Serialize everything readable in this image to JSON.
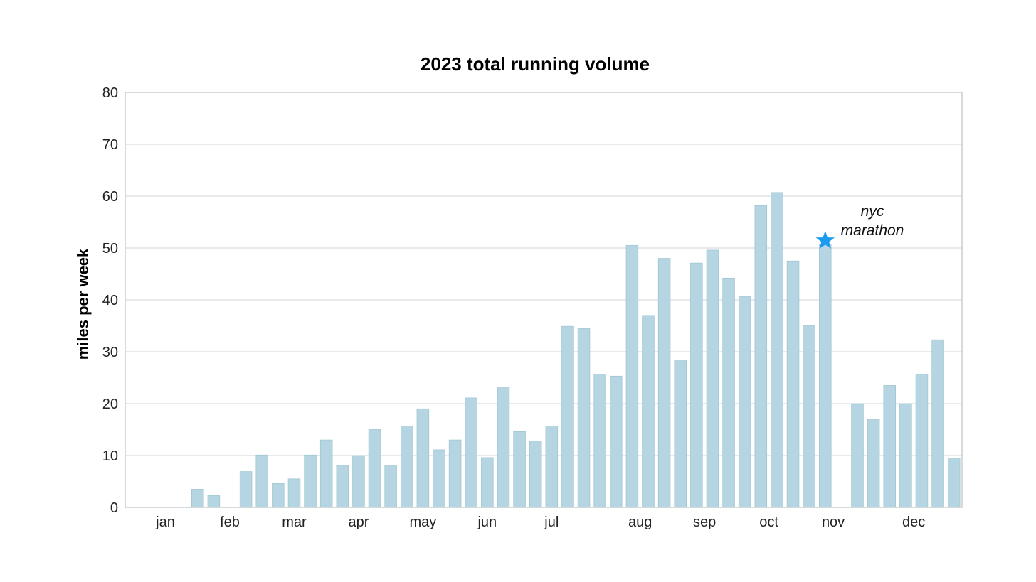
{
  "chart_data": {
    "type": "bar",
    "title": "2023 total running volume",
    "xlabel": "",
    "ylabel": "miles per week",
    "ylim": [
      0,
      80
    ],
    "yticks": [
      0,
      10,
      20,
      30,
      40,
      50,
      60,
      70,
      80
    ],
    "grid": true,
    "bar_color": "#b5d5e2",
    "x": [
      "2023-01-02",
      "2023-01-09",
      "2023-01-16",
      "2023-01-23",
      "2023-01-30",
      "2023-02-06",
      "2023-02-13",
      "2023-02-20",
      "2023-02-27",
      "2023-03-06",
      "2023-03-13",
      "2023-03-20",
      "2023-03-27",
      "2023-04-03",
      "2023-04-10",
      "2023-04-17",
      "2023-04-24",
      "2023-05-01",
      "2023-05-08",
      "2023-05-15",
      "2023-05-22",
      "2023-05-29",
      "2023-06-05",
      "2023-06-12",
      "2023-06-19",
      "2023-06-26",
      "2023-07-03",
      "2023-07-10",
      "2023-07-17",
      "2023-07-24",
      "2023-07-31",
      "2023-08-07",
      "2023-08-14",
      "2023-08-21",
      "2023-08-28",
      "2023-09-04",
      "2023-09-11",
      "2023-09-18",
      "2023-09-25",
      "2023-10-02",
      "2023-10-09",
      "2023-10-16",
      "2023-10-23",
      "2023-10-30",
      "2023-11-06",
      "2023-11-13",
      "2023-11-20",
      "2023-11-27",
      "2023-12-04",
      "2023-12-11",
      "2023-12-18",
      "2023-12-25"
    ],
    "values": [
      0,
      0,
      0,
      0,
      3.5,
      2.3,
      0,
      6.9,
      10.1,
      4.6,
      5.5,
      10.1,
      13.0,
      8.1,
      10.0,
      15.0,
      8.0,
      15.7,
      19.0,
      11.1,
      13.0,
      21.1,
      9.6,
      23.2,
      14.6,
      12.8,
      15.7,
      34.9,
      34.5,
      25.7,
      25.3,
      50.5,
      37.0,
      48.0,
      28.4,
      47.1,
      49.6,
      44.2,
      40.7,
      58.2,
      60.7,
      47.5,
      35.0,
      50.6,
      0,
      20.0,
      17.0,
      23.5,
      20.0,
      25.7,
      32.3,
      9.5
    ],
    "month_labels": [
      {
        "label": "jan",
        "at_bar": 2.0
      },
      {
        "label": "feb",
        "at_bar": 6.0
      },
      {
        "label": "mar",
        "at_bar": 10.0
      },
      {
        "label": "apr",
        "at_bar": 14.0
      },
      {
        "label": "may",
        "at_bar": 18.0
      },
      {
        "label": "jun",
        "at_bar": 22.0
      },
      {
        "label": "jul",
        "at_bar": 26.0
      },
      {
        "label": "aug",
        "at_bar": 31.5
      },
      {
        "label": "sep",
        "at_bar": 35.5
      },
      {
        "label": "oct",
        "at_bar": 39.5
      },
      {
        "label": "nov",
        "at_bar": 43.5
      },
      {
        "label": "dec",
        "at_bar": 48.5
      }
    ],
    "annotation": {
      "lines": [
        "nyc",
        "marathon"
      ],
      "bar_index": 43,
      "value": 50.6,
      "marker": "star-icon",
      "marker_color": "#1a9bf0"
    }
  }
}
